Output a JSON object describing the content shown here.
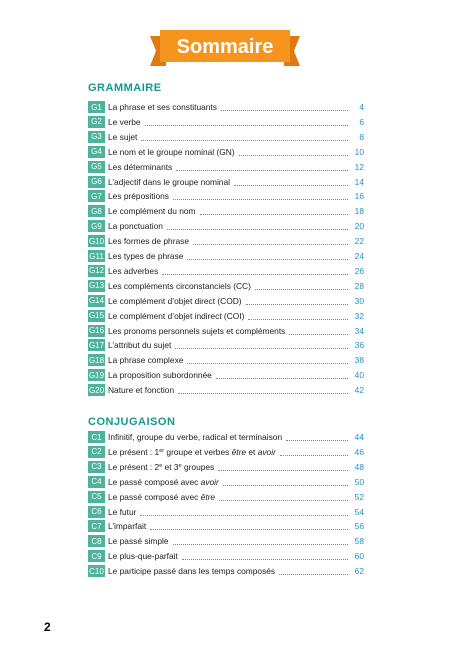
{
  "header": {
    "title": "Sommaire"
  },
  "sections": [
    {
      "title": "GRAMMAIRE",
      "entries": [
        {
          "code": "G1",
          "title": "La phrase et ses constituants",
          "page": "4"
        },
        {
          "code": "G2",
          "title": "Le verbe",
          "page": "6"
        },
        {
          "code": "G3",
          "title": "Le sujet",
          "page": "8"
        },
        {
          "code": "G4",
          "title": "Le nom et le groupe nominal (GN)",
          "page": "10"
        },
        {
          "code": "G5",
          "title": "Les déterminants",
          "page": "12"
        },
        {
          "code": "G6",
          "title": "L’adjectif dans le groupe nominal",
          "page": "14"
        },
        {
          "code": "G7",
          "title": "Les prépositions",
          "page": "16"
        },
        {
          "code": "G8",
          "title": "Le complément du nom",
          "page": "18"
        },
        {
          "code": "G9",
          "title": "La ponctuation",
          "page": "20"
        },
        {
          "code": "G10",
          "title": "Les formes de phrase",
          "page": "22"
        },
        {
          "code": "G11",
          "title": "Les types de phrase",
          "page": "24"
        },
        {
          "code": "G12",
          "title": "Les adverbes",
          "page": "26"
        },
        {
          "code": "G13",
          "title": "Les compléments circonstanciels (CC)",
          "page": "28"
        },
        {
          "code": "G14",
          "title": "Le complément d’objet direct (COD)",
          "page": "30"
        },
        {
          "code": "G15",
          "title": "Le complément d’objet indirect (COI)",
          "page": "32"
        },
        {
          "code": "G16",
          "title": "Les pronoms personnels sujets et compléments",
          "page": "34"
        },
        {
          "code": "G17",
          "title": "L’attribut du sujet",
          "page": "36"
        },
        {
          "code": "G18",
          "title": "La phrase complexe",
          "page": "38"
        },
        {
          "code": "G19",
          "title": "La proposition subordonnée",
          "page": "40"
        },
        {
          "code": "G20",
          "title": "Nature et fonction",
          "page": "42"
        }
      ]
    },
    {
      "title": "CONJUGAISON",
      "entries": [
        {
          "code": "C1",
          "title": "Infinitif, groupe du verbe, radical et terminaison",
          "page": "44"
        },
        {
          "code": "C2",
          "title": [
            {
              "text": "Le présent : 1"
            },
            {
              "text": "er",
              "style": "sup"
            },
            {
              "text": " groupe et verbes "
            },
            {
              "text": "être",
              "style": "i"
            },
            {
              "text": " et "
            },
            {
              "text": "avoir",
              "style": "i"
            }
          ],
          "page": "46"
        },
        {
          "code": "C3",
          "title": [
            {
              "text": "Le présent : 2"
            },
            {
              "text": "e",
              "style": "sup"
            },
            {
              "text": " et 3"
            },
            {
              "text": "e",
              "style": "sup"
            },
            {
              "text": " groupes"
            }
          ],
          "page": "48"
        },
        {
          "code": "C4",
          "title": [
            {
              "text": "Le passé composé avec "
            },
            {
              "text": "avoir",
              "style": "i"
            }
          ],
          "page": "50"
        },
        {
          "code": "C5",
          "title": [
            {
              "text": "Le passé composé avec "
            },
            {
              "text": "être",
              "style": "i"
            }
          ],
          "page": "52"
        },
        {
          "code": "C6",
          "title": "Le futur",
          "page": "54"
        },
        {
          "code": "C7",
          "title": "L’imparfait",
          "page": "56"
        },
        {
          "code": "C8",
          "title": "Le passé simple",
          "page": "58"
        },
        {
          "code": "C9",
          "title": "Le plus-que-parfait",
          "page": "60"
        },
        {
          "code": "C10",
          "title": "Le participe passé dans les temps composés",
          "page": "62"
        }
      ]
    }
  ],
  "footer": {
    "page_number": "2"
  }
}
